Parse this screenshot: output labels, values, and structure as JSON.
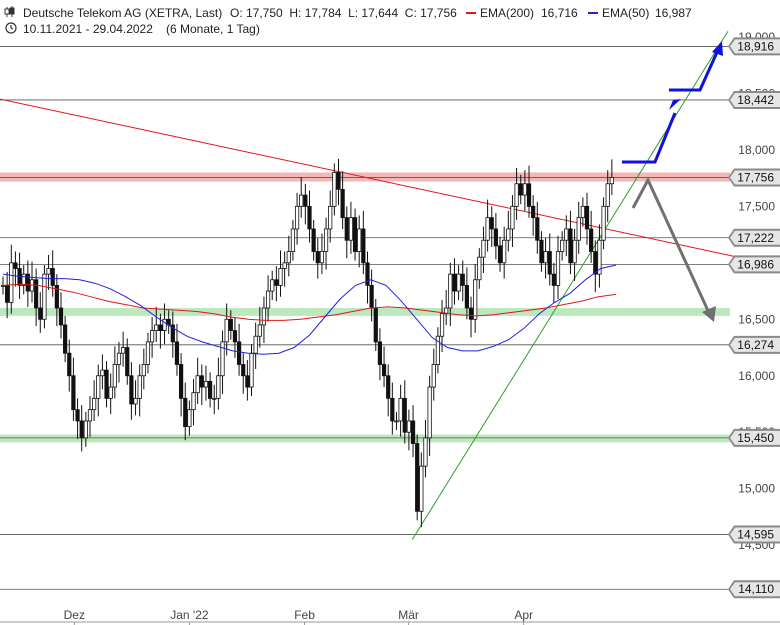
{
  "header": {
    "title": "Deutsche Telekom AG (XETRA, Last)",
    "ohlc": "O: 17,750  H: 17,784  L: 17,644  C: 17,756",
    "ema200_label": "EMA(200)",
    "ema200_value": "16,716",
    "ema50_label": "EMA(50)",
    "ema50_value": "16,987",
    "range": "10.11.2021 - 29.04.2022",
    "period": "(6 Monate, 1 Tag)"
  },
  "colors": {
    "ema200": "#e01818",
    "ema50": "#2020e0",
    "trend_up": "#2aa02a",
    "resistance_zone": "#f2b8b8",
    "support_zone": "#bde8bd",
    "arrow_up": "#1010e0",
    "arrow_down": "#707070"
  },
  "chart_data": {
    "type": "candlestick",
    "y_ticks": [
      "19,000",
      "18,500",
      "18,000",
      "17,500",
      "17,000",
      "16,500",
      "16,000",
      "15,500",
      "15,000",
      "14,500"
    ],
    "y_tick_values": [
      19.0,
      18.5,
      18.0,
      17.5,
      17.0,
      16.5,
      16.0,
      15.5,
      15.0,
      14.5
    ],
    "x_ticks": [
      "Dez",
      "Jan '22",
      "Feb",
      "Mär",
      "Apr"
    ],
    "x_tick_days": [
      20,
      51,
      82,
      110,
      141
    ],
    "ylim": [
      14.05,
      19.15
    ],
    "xlim": [
      0,
      196
    ],
    "price_levels": [
      "18,916",
      "18,442",
      "17,756",
      "17,222",
      "16,986",
      "16,274",
      "15,450",
      "14,595",
      "14,110"
    ],
    "price_level_values": [
      18.916,
      18.442,
      17.756,
      17.222,
      16.986,
      16.274,
      15.45,
      14.595,
      14.11
    ],
    "zones": [
      {
        "name": "resistance",
        "low": 17.72,
        "high": 17.8
      },
      {
        "name": "support",
        "low": 16.53,
        "high": 16.6
      },
      {
        "name": "support",
        "low": 15.41,
        "high": 15.48
      }
    ],
    "close": [
      16.8,
      16.65,
      17.0,
      16.95,
      16.8,
      16.9,
      16.75,
      16.85,
      16.6,
      16.5,
      16.9,
      16.95,
      16.8,
      16.6,
      16.45,
      16.2,
      16.0,
      15.7,
      15.6,
      15.45,
      15.6,
      15.7,
      15.8,
      16.0,
      16.05,
      15.8,
      15.9,
      16.1,
      16.2,
      16.25,
      16.0,
      15.75,
      15.8,
      16.0,
      16.1,
      16.3,
      16.4,
      16.45,
      16.4,
      16.5,
      16.45,
      16.3,
      16.1,
      15.8,
      15.55,
      15.7,
      15.85,
      16.0,
      15.9,
      15.95,
      15.8,
      15.8,
      16.0,
      16.3,
      16.5,
      16.4,
      16.3,
      16.1,
      16.0,
      15.9,
      16.2,
      16.35,
      16.45,
      16.6,
      16.75,
      16.85,
      16.8,
      16.95,
      17.0,
      17.1,
      17.3,
      17.5,
      17.6,
      17.5,
      17.3,
      17.1,
      17.0,
      17.1,
      17.3,
      17.5,
      17.8,
      17.65,
      17.4,
      17.2,
      17.4,
      17.1,
      17.3,
      17.0,
      16.8,
      16.6,
      16.3,
      16.1,
      16.0,
      15.8,
      15.6,
      15.6,
      15.8,
      15.5,
      15.6,
      15.4,
      14.8,
      15.2,
      15.45,
      15.9,
      16.1,
      16.35,
      16.55,
      16.6,
      16.9,
      16.75,
      16.9,
      16.8,
      16.6,
      16.5,
      16.85,
      17.05,
      17.2,
      17.4,
      17.3,
      17.15,
      17.0,
      17.2,
      17.3,
      17.5,
      17.7,
      17.6,
      17.7,
      17.5,
      17.4,
      17.2,
      17.0,
      17.1,
      16.9,
      16.8,
      17.1,
      17.2,
      17.3,
      17.0,
      17.2,
      17.4,
      17.5,
      17.3,
      17.1,
      16.9,
      17.2,
      17.5,
      17.7,
      17.756
    ],
    "ema50": [
      16.9,
      16.88,
      16.87,
      16.86,
      16.86,
      16.85,
      16.82,
      16.77,
      16.7,
      16.62,
      16.52,
      16.43,
      16.35,
      16.3,
      16.26,
      16.22,
      16.2,
      16.19,
      16.2,
      16.25,
      16.36,
      16.52,
      16.68,
      16.8,
      16.85,
      16.8,
      16.66,
      16.5,
      16.34,
      16.25,
      16.22,
      16.22,
      16.26,
      16.32,
      16.42,
      16.55,
      16.65,
      16.73,
      16.85,
      16.95,
      16.98
    ],
    "ema200": [
      16.8,
      16.81,
      16.8,
      16.77,
      16.74,
      16.7,
      16.66,
      16.63,
      16.6,
      16.59,
      16.58,
      16.57,
      16.55,
      16.52,
      16.5,
      16.49,
      16.49,
      16.5,
      16.52,
      16.54,
      16.57,
      16.6,
      16.61,
      16.6,
      16.58,
      16.56,
      16.54,
      16.53,
      16.54,
      16.56,
      16.58,
      16.6,
      16.63,
      16.66,
      16.7,
      16.72
    ]
  }
}
